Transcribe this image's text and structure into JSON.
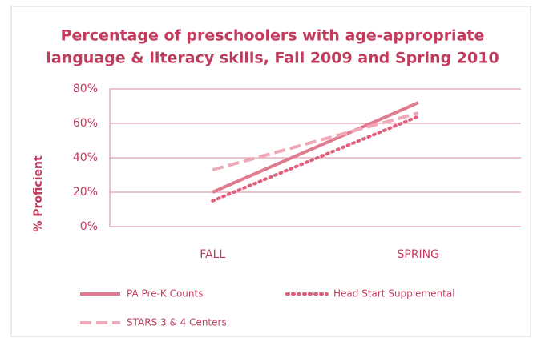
{
  "chart_data": {
    "type": "line",
    "title": [
      "Percentage of preschoolers with age-appropriate",
      "language & literacy skills, Fall 2009  and Spring 2010"
    ],
    "y_label": "% Proficient",
    "categories": [
      "FALL",
      "SPRING"
    ],
    "series": [
      {
        "name": "PA Pre-K Counts",
        "color": "#e07a8e",
        "style": "solid",
        "values": [
          20,
          72
        ]
      },
      {
        "name": "Head Start Supplemental",
        "color": "#e0607c",
        "style": "dotted",
        "values": [
          15,
          64
        ]
      },
      {
        "name": "STARS 3 & 4 Centers",
        "color": "#f0a9b6",
        "style": "dashed",
        "values": [
          33,
          66
        ]
      }
    ],
    "ylim": [
      0,
      80
    ],
    "yticks": [
      {
        "value": 0,
        "label": "0%"
      },
      {
        "value": 20,
        "label": "20%"
      },
      {
        "value": 40,
        "label": "40%"
      },
      {
        "value": 60,
        "label": "60%"
      },
      {
        "value": 80,
        "label": "80%"
      }
    ],
    "grid": true
  }
}
